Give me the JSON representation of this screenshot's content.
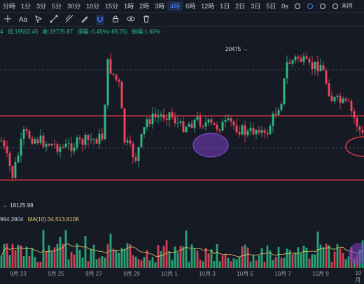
{
  "toolbar": {
    "timeframes": [
      "分時",
      "1分",
      "3分",
      "5分",
      "30分",
      "10分",
      "15分",
      "1時",
      "2時",
      "3時",
      "4時",
      "6時",
      "12時",
      "1日",
      "2日",
      "3日",
      "5日",
      "0s"
    ],
    "active_index": 10,
    "right_label": "未同"
  },
  "drawing_tools": {
    "font_label": "Aa"
  },
  "infobar": {
    "prefix": "4",
    "low": "低:19562.45",
    "close": "收:19725.87",
    "change": "漲幅:-0.45%(-88.76)",
    "amplitude": "振幅:1.60%"
  },
  "price_labels": {
    "high": "20475",
    "low": "18125.98"
  },
  "volume": {
    "left_value": "994.3904",
    "ma_label": "MA(10):34,513.8108"
  },
  "xaxis": {
    "labels": [
      "9月 23",
      "9月 25",
      "9月 27",
      "9月 29",
      "10月 1",
      "10月 3",
      "10月 5",
      "10月 7",
      "10月 9",
      "10月"
    ]
  },
  "colors": {
    "up": "#2ebd85",
    "down": "#f6465d",
    "accent": "#4f83ff",
    "line": "#e0383e",
    "ellipse": "#7b3fc7",
    "ma": "#e8c66a"
  }
}
